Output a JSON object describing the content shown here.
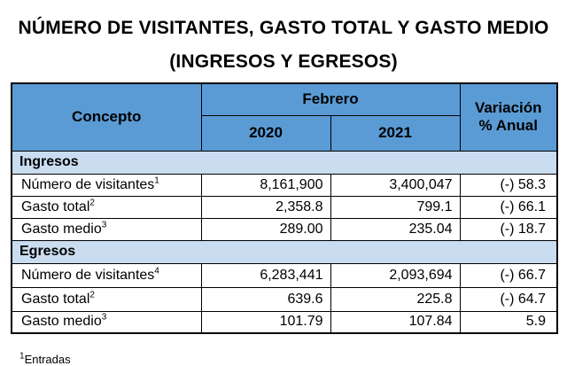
{
  "title_line1": "NÚMERO DE VISITANTES, GASTO TOTAL Y GASTO MEDIO",
  "title_line2": "(INGRESOS Y EGRESOS)",
  "header": {
    "concepto": "Concepto",
    "month": "Febrero",
    "year1": "2020",
    "year2": "2021",
    "variacion_line1": "Variación",
    "variacion_line2": "% Anual"
  },
  "sections": [
    {
      "name": "Ingresos",
      "rows": [
        {
          "label": "Número de visitantes",
          "sup": "1",
          "v2020": "8,161,900",
          "v2021": "3,400,047",
          "variacion": "(-) 58.3"
        },
        {
          "label": "Gasto total",
          "sup": "2",
          "v2020": "2,358.8",
          "v2021": "799.1",
          "variacion": "(-) 66.1"
        },
        {
          "label": "Gasto medio",
          "sup": "3",
          "v2020": "289.00",
          "v2021": "235.04",
          "variacion": "(-) 18.7"
        }
      ]
    },
    {
      "name": "Egresos",
      "rows": [
        {
          "label": "Número de visitantes",
          "sup": "4",
          "v2020": "6,283,441",
          "v2021": "2,093,694",
          "variacion": "(-) 66.7"
        },
        {
          "label": "Gasto total",
          "sup": "2",
          "v2020": "639.6",
          "v2021": "225.8",
          "variacion": "(-) 64.7"
        },
        {
          "label": "Gasto medio",
          "sup": "3",
          "v2020": "101.79",
          "v2021": "107.84",
          "variacion": "5.9"
        }
      ]
    }
  ],
  "footnote": {
    "sup": "1",
    "text": "Entradas"
  },
  "colors": {
    "header_fill": "#5b9bd5",
    "section_fill": "#c9dcf0"
  }
}
